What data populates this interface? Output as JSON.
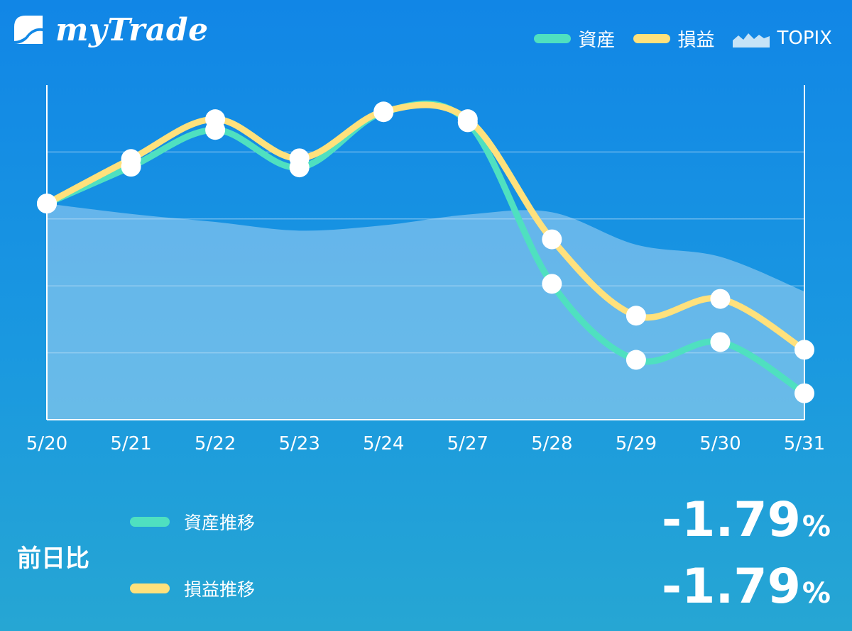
{
  "app": {
    "name": "myTrade",
    "logo_icon": "mytrade-logo-icon"
  },
  "colors": {
    "assets": "#4fe0c0",
    "profit": "#ffe17c",
    "topix": "#c5e3f7",
    "background_top": "#1186e6",
    "background_bottom": "#26a6d3"
  },
  "legend": {
    "assets_label": "資産",
    "profit_label": "損益",
    "topix_label": "TOPIX"
  },
  "chart_data": {
    "type": "line",
    "title": "",
    "xlabel": "",
    "ylabel": "",
    "categories": [
      "5/20",
      "5/21",
      "5/22",
      "5/23",
      "5/24",
      "5/27",
      "5/28",
      "5/29",
      "5/30",
      "5/31"
    ],
    "ylim": [
      0,
      100
    ],
    "grid": true,
    "legend_position": "top-right",
    "series": [
      {
        "name": "資産",
        "type": "line",
        "values": [
          64.6,
          75.6,
          86.6,
          75.4,
          91.9,
          88.9,
          40.6,
          17.9,
          23.2,
          7.9
        ]
      },
      {
        "name": "損益",
        "type": "line",
        "values": [
          64.6,
          77.9,
          89.8,
          78.1,
          92.1,
          89.8,
          53.9,
          31.1,
          36.1,
          20.9
        ]
      },
      {
        "name": "TOPIX",
        "type": "area",
        "values": [
          64.6,
          61.5,
          59.1,
          56.5,
          58.1,
          61.3,
          62.0,
          52.3,
          48.7,
          38.3
        ]
      }
    ]
  },
  "summary": {
    "title": "前日比",
    "assets_label": "資産推移",
    "profit_label": "損益推移",
    "assets_value": "-1.79",
    "profit_value": "-1.79",
    "unit": "%"
  }
}
